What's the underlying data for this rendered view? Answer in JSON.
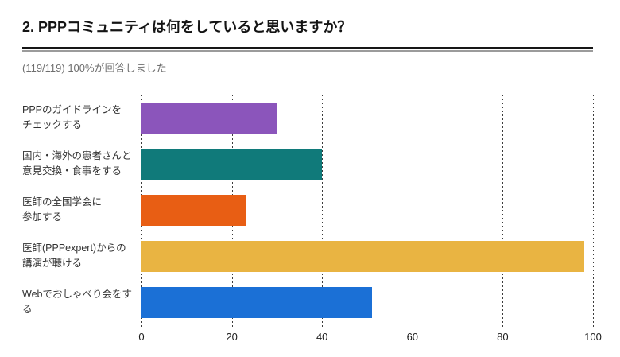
{
  "header": {
    "title": "2. PPPコミュニティは何をしていると思いますか？",
    "response_summary": "(119/119) 100%が回答しました"
  },
  "chart_data": {
    "type": "bar",
    "orientation": "horizontal",
    "title": "2. PPPコミュニティは何をしていると思いますか？",
    "subtitle": "(119/119) 100%が回答しました",
    "categories": [
      "PPPのガイドラインを\nチェックする",
      "国内・海外の患者さんと\n意見交換・食事をする",
      "医師の全国学会に\n参加する",
      "医師(PPPexpert)からの\n講演が聴ける",
      "Webでおしゃべり会をする"
    ],
    "values": [
      30,
      40,
      23,
      98,
      51
    ],
    "bar_colors": [
      "#8B55BB",
      "#107A7A",
      "#E85E14",
      "#E9B442",
      "#1B70D6"
    ],
    "xlim": [
      0,
      100
    ],
    "x_ticks": [
      0,
      20,
      40,
      60,
      80,
      100
    ],
    "xlabel": "",
    "ylabel": "",
    "grid": "dotted-vertical",
    "legend": "none"
  },
  "colors": {
    "title_text": "#141414",
    "subtitle_text": "#6E6E6E",
    "label_text": "#333333",
    "axis_text": "#1C1C1C",
    "divider_dark": "#161616",
    "divider_gray": "#9B9B9B",
    "gridline": "#3C3C3C",
    "background": "#FFFFFF"
  }
}
